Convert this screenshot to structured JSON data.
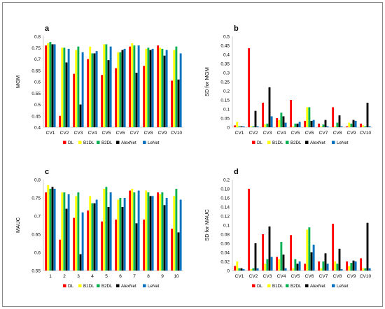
{
  "series_colors": {
    "DL": "#ff0000",
    "B1DL": "#ffff00",
    "B2DL": "#00b050",
    "AlexNet": "#000000",
    "LeNet": "#0070c0"
  },
  "chart_data": [
    {
      "id": "a",
      "panel_letter": "a",
      "type": "bar",
      "title": "",
      "xlabel": "",
      "ylabel": "MGM",
      "ylim": [
        0.4,
        0.8
      ],
      "yticks": [
        0.4,
        0.45,
        0.5,
        0.55,
        0.6,
        0.65,
        0.7,
        0.75,
        0.8
      ],
      "ytick_labels": [
        "0.4",
        "0.45",
        "0.5",
        "0.55",
        "0.6",
        "0.65",
        "0.7",
        "0.75",
        "0.8"
      ],
      "categories": [
        "CV1",
        "CV2",
        "CV3",
        "CV4",
        "CV5",
        "CV6",
        "CV7",
        "CV8",
        "CV9",
        "CV10"
      ],
      "legend_position": "bottom",
      "grid": false,
      "series": [
        {
          "name": "DL",
          "values": [
            0.76,
            0.45,
            0.635,
            0.7,
            0.63,
            0.66,
            0.755,
            0.67,
            0.76,
            0.605
          ]
        },
        {
          "name": "B1DL",
          "values": [
            0.77,
            0.75,
            0.74,
            0.755,
            0.765,
            0.73,
            0.77,
            0.745,
            0.75,
            0.74
          ]
        },
        {
          "name": "B2DL",
          "values": [
            0.775,
            0.75,
            0.755,
            0.725,
            0.765,
            0.73,
            0.76,
            0.75,
            0.745,
            0.755
          ]
        },
        {
          "name": "AlexNet",
          "values": [
            0.765,
            0.685,
            0.5,
            0.725,
            0.695,
            0.74,
            0.64,
            0.74,
            0.715,
            0.61
          ]
        },
        {
          "name": "LeNet",
          "values": [
            0.765,
            0.745,
            0.73,
            0.735,
            0.755,
            0.745,
            0.76,
            0.745,
            0.74,
            0.725
          ]
        }
      ]
    },
    {
      "id": "b",
      "panel_letter": "b",
      "type": "bar",
      "title": "",
      "xlabel": "",
      "ylabel": "SD for MGM",
      "ylim": [
        0,
        0.5
      ],
      "yticks": [
        0,
        0.05,
        0.1,
        0.15,
        0.2,
        0.25,
        0.3,
        0.35,
        0.4,
        0.45,
        0.5
      ],
      "ytick_labels": [
        "0",
        "0.05",
        "0.1",
        "0.15",
        "0.2",
        "0.25",
        "0.3",
        "0.35",
        "0.4",
        "0.45",
        "0.5"
      ],
      "categories": [
        "CV1",
        "CV2",
        "CV3",
        "CV4",
        "CV5",
        "CV6",
        "CV7",
        "CV8",
        "CV9",
        "CV10"
      ],
      "legend_position": "bottom",
      "grid": false,
      "series": [
        {
          "name": "DL",
          "values": [
            0.01,
            0.435,
            0.135,
            0.05,
            0.15,
            0.035,
            0.02,
            0.11,
            0.005,
            0.02
          ]
        },
        {
          "name": "B1DL",
          "values": [
            0.03,
            0.005,
            0.015,
            0.04,
            0.005,
            0.11,
            0.005,
            0.005,
            0.025,
            0.01
          ]
        },
        {
          "name": "B2DL",
          "values": [
            0.005,
            0.005,
            0.02,
            0.08,
            0.02,
            0.11,
            0.015,
            0.025,
            0.02,
            0.005
          ]
        },
        {
          "name": "AlexNet",
          "values": [
            0.005,
            0.09,
            0.22,
            0.06,
            0.02,
            0.035,
            0.04,
            0.065,
            0.04,
            0.135
          ]
        },
        {
          "name": "LeNet",
          "values": [
            0.005,
            0.005,
            0.06,
            0.025,
            0.03,
            0.04,
            0.005,
            0.005,
            0.035,
            0.005
          ]
        }
      ]
    },
    {
      "id": "c",
      "panel_letter": "c",
      "type": "bar",
      "title": "",
      "xlabel": "",
      "ylabel": "MAUC",
      "ylim": [
        0.55,
        0.8
      ],
      "yticks": [
        0.55,
        0.6,
        0.65,
        0.7,
        0.75,
        0.8
      ],
      "ytick_labels": [
        "0.55",
        "0.6",
        "0.65",
        "0.7",
        "0.75",
        "0.8"
      ],
      "categories": [
        "1",
        "2",
        "3",
        "4",
        "5",
        "6",
        "7",
        "8",
        "9",
        "10"
      ],
      "legend_position": "bottom",
      "grid": false,
      "series": [
        {
          "name": "DL",
          "values": [
            0.765,
            0.635,
            0.695,
            0.715,
            0.685,
            0.69,
            0.77,
            0.69,
            0.765,
            0.665
          ]
        },
        {
          "name": "B1DL",
          "values": [
            0.785,
            0.765,
            0.755,
            0.755,
            0.775,
            0.745,
            0.775,
            0.77,
            0.76,
            0.755
          ]
        },
        {
          "name": "B2DL",
          "values": [
            0.775,
            0.765,
            0.765,
            0.735,
            0.78,
            0.75,
            0.765,
            0.765,
            0.765,
            0.775
          ]
        },
        {
          "name": "AlexNet",
          "values": [
            0.78,
            0.72,
            0.595,
            0.735,
            0.725,
            0.725,
            0.68,
            0.755,
            0.73,
            0.655
          ]
        },
        {
          "name": "LeNet",
          "values": [
            0.775,
            0.76,
            0.71,
            0.745,
            0.765,
            0.75,
            0.77,
            0.755,
            0.75,
            0.745
          ]
        }
      ]
    },
    {
      "id": "d",
      "panel_letter": "d",
      "type": "bar",
      "title": "",
      "xlabel": "",
      "ylabel": "SD for MAUC",
      "ylim": [
        0,
        0.2
      ],
      "yticks": [
        0,
        0.02,
        0.04,
        0.06,
        0.08,
        0.1,
        0.12,
        0.14,
        0.16,
        0.18,
        0.2
      ],
      "ytick_labels": [
        "0",
        "0.02",
        "0.04",
        "0.06",
        "0.08",
        "0.1",
        "0.12",
        "0.14",
        "0.16",
        "0.18",
        "0.2"
      ],
      "categories": [
        "CV1",
        "CV2",
        "CV3",
        "CV4",
        "CV5",
        "CV6",
        "CV7",
        "CV8",
        "CV9",
        "CV10"
      ],
      "legend_position": "bottom",
      "grid": false,
      "series": [
        {
          "name": "DL",
          "values": [
            0.01,
            0.18,
            0.08,
            0.03,
            0.078,
            0.015,
            0.02,
            0.103,
            0.02,
            0.027
          ]
        },
        {
          "name": "B1DL",
          "values": [
            0.02,
            0.003,
            0.015,
            0.025,
            0.005,
            0.09,
            0.005,
            0.02,
            0.01,
            0.005
          ]
        },
        {
          "name": "B2DL",
          "values": [
            0.005,
            0.005,
            0.025,
            0.063,
            0.025,
            0.095,
            0.02,
            0.015,
            0.017,
            0.005
          ]
        },
        {
          "name": "AlexNet",
          "values": [
            0.005,
            0.06,
            0.097,
            0.035,
            0.015,
            0.04,
            0.038,
            0.048,
            0.022,
            0.105
          ]
        },
        {
          "name": "LeNet",
          "values": [
            0.003,
            0.005,
            0.03,
            0.005,
            0.02,
            0.057,
            0.015,
            0.003,
            0.02,
            0.005
          ]
        }
      ]
    }
  ]
}
